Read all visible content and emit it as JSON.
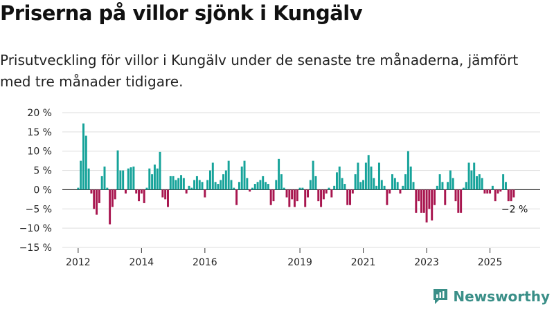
{
  "title": "Priserna på villor sjönk i Kungälv",
  "subtitle": "Prisutveckling för villor i Kungälv under de senaste tre månaderna, jämfört med tre månader tidigare.",
  "brand": {
    "name": "Newsworthy",
    "icon": "newsworthy-logo-icon"
  },
  "colors": {
    "positive": "#16a39a",
    "negative": "#a8164f",
    "grid": "#dddddd",
    "axis": "#333333"
  },
  "chart_data": {
    "type": "bar",
    "grid": true,
    "ylim": [
      -15,
      20
    ],
    "xlim": [
      "2011-07",
      "2026-08"
    ],
    "y_ticks": [
      20,
      15,
      10,
      5,
      0,
      -5,
      -10,
      -15
    ],
    "y_tick_labels": [
      "20 %",
      "15 %",
      "10 %",
      "5 %",
      "0 %",
      "−5 %",
      "−10 %",
      "−15 %"
    ],
    "x_ticks": [
      {
        "date": "2012-01",
        "label": "2012"
      },
      {
        "date": "2014-01",
        "label": "2014"
      },
      {
        "date": "2016-01",
        "label": "2016"
      },
      {
        "date": "2019-01",
        "label": "2019"
      },
      {
        "date": "2021-01",
        "label": "2021"
      },
      {
        "date": "2023-01",
        "label": "2023"
      },
      {
        "date": "2025-01",
        "label": "2025"
      }
    ],
    "annotation": "−2 %",
    "start_month": "2012-01",
    "values": [
      0.5,
      7.5,
      17.2,
      14.0,
      5.5,
      -1.0,
      -5.0,
      -6.5,
      -3.5,
      3.5,
      6.0,
      0.5,
      -9.0,
      -4.5,
      -2.5,
      10.2,
      5.0,
      5.0,
      -1.0,
      5.5,
      5.8,
      6.0,
      -1.0,
      -3.0,
      -1.0,
      -3.5,
      0.5,
      5.5,
      4.0,
      6.5,
      5.5,
      9.8,
      -2.0,
      -2.5,
      -4.5,
      3.5,
      3.5,
      2.5,
      3.0,
      3.8,
      3.0,
      -1.0,
      1.0,
      0.5,
      2.5,
      3.5,
      2.5,
      2.0,
      -2.0,
      2.5,
      5.0,
      7.0,
      2.0,
      1.5,
      2.5,
      4.0,
      5.0,
      7.5,
      2.5,
      0.5,
      -4.0,
      2.0,
      6.0,
      7.5,
      3.0,
      -0.5,
      0.5,
      1.5,
      2.0,
      2.5,
      3.5,
      2.0,
      1.5,
      -4.0,
      -3.0,
      2.5,
      8.0,
      4.0,
      0.5,
      -2.0,
      -4.5,
      -2.5,
      -4.5,
      -3.0,
      0.5,
      0.5,
      -4.5,
      -2.0,
      2.5,
      7.5,
      3.5,
      -3.0,
      -4.5,
      -2.5,
      -1.0,
      0.5,
      -2.0,
      1.0,
      4.5,
      6.0,
      3.0,
      1.5,
      -4.0,
      -4.0,
      -1.0,
      4.0,
      7.0,
      2.0,
      2.5,
      7.0,
      9.0,
      6.0,
      3.0,
      1.0,
      7.0,
      2.5,
      1.0,
      -4.0,
      -1.0,
      4.0,
      3.0,
      2.0,
      -1.0,
      1.0,
      4.0,
      10.0,
      6.0,
      2.0,
      -6.0,
      -3.0,
      -6.0,
      -6.0,
      -8.5,
      -5.0,
      -8.0,
      -4.0,
      1.0,
      4.0,
      2.0,
      -4.0,
      2.0,
      5.0,
      3.0,
      -3.0,
      -6.0,
      -6.0,
      0.5,
      2.0,
      7.0,
      5.0,
      7.0,
      3.5,
      4.0,
      3.0,
      -1.0,
      -1.0,
      -1.0,
      1.0,
      -3.0,
      -1.0,
      -0.5,
      4.0,
      2.0,
      -3.0,
      -3.0,
      -2.0
    ]
  }
}
